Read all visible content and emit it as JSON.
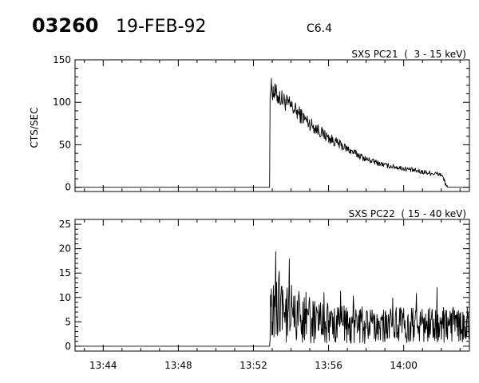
{
  "header": {
    "event_id": "03260",
    "date": "19-FEB-92",
    "class": "C6.4"
  },
  "chart_data": [
    {
      "type": "line",
      "title": "SXS PC21  (  3 - 15 keV)",
      "ylabel": "CTS/SEC",
      "xlabel": "",
      "x_ticks": [
        "13:44",
        "13:48",
        "13:52",
        "13:56",
        "14:00"
      ],
      "x_range": [
        "13:42:30",
        "14:03:30"
      ],
      "y_ticks": [
        0,
        50,
        100,
        150
      ],
      "ylim": [
        -5,
        150
      ],
      "series": [
        {
          "x": [
            "13:42:30",
            "13:52:52",
            "13:52:53",
            "13:53:10",
            "13:54:00",
            "13:55:00",
            "13:56:00",
            "13:57:00",
            "13:58:00",
            "13:59:00",
            "14:00:00",
            "14:01:00",
            "14:02:00",
            "14:02:20",
            "14:03:30"
          ],
          "values": [
            0,
            0,
            118,
            110,
            95,
            75,
            58,
            45,
            33,
            26,
            22,
            18,
            15,
            0,
            0
          ]
        }
      ]
    },
    {
      "type": "line",
      "title": "SXS PC22  ( 15 - 40 keV)",
      "ylabel": "",
      "xlabel": "",
      "x_ticks": [
        "13:44",
        "13:48",
        "13:52",
        "13:56",
        "14:00"
      ],
      "x_range": [
        "13:42:30",
        "14:03:30"
      ],
      "y_ticks": [
        0,
        5,
        10,
        15,
        20,
        25
      ],
      "ylim": [
        -1,
        26
      ],
      "series": [
        {
          "x": [
            "13:42:30",
            "13:52:52",
            "13:52:53",
            "13:53:30",
            "13:54:30",
            "13:56:00",
            "13:58:00",
            "14:00:00",
            "14:02:00",
            "14:03:30"
          ],
          "values": [
            0,
            0,
            12,
            9,
            7,
            5.5,
            5,
            5,
            5,
            5
          ]
        }
      ]
    }
  ]
}
